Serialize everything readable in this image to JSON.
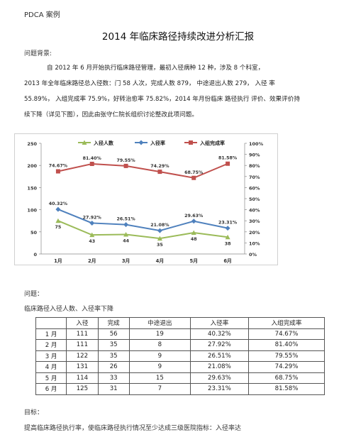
{
  "header": {
    "label": "PDCA 案例"
  },
  "title": "2014 年临床路径持续改进分析汇报",
  "background": {
    "heading": "问题背景:",
    "lines": [
      "自 2012 年 6 月开始执行临床路径管理，最初入径病种 12 种，涉及 8 个科室，",
      "2013 年全年临床路径总入径数：门 58 人次，完成人数 879， 中途退出人数 279， 入径  率",
      "55.89%，  入组完成率 75.9%，好转治愈率 75.82%，2014 年月份临床  路径执行  评价、效果评价持",
      "续下降（详见下图），因此由张守仁院长组织讨论整改此项问题。"
    ]
  },
  "chart_data": {
    "type": "line",
    "categories": [
      "1月",
      "2月",
      "3月",
      "4月",
      "5月",
      "6月"
    ],
    "left_axis": {
      "ticks": [
        "0",
        "50",
        "100",
        "150",
        "200",
        "250"
      ],
      "ylim": [
        0,
        250
      ]
    },
    "right_axis": {
      "ticks": [
        "0%",
        "10%",
        "20%",
        "30%",
        "40%",
        "50%",
        "60%",
        "70%",
        "80%",
        "90%",
        "100%"
      ],
      "ylim": [
        0,
        100
      ]
    },
    "legend_position": "top",
    "series": [
      {
        "name": "入径人数",
        "axis": "left",
        "color": "#9bbb59",
        "values": [
          75,
          43,
          44,
          35,
          48,
          38
        ],
        "labels": [
          "75",
          "43",
          "44",
          "35",
          "48",
          "38"
        ]
      },
      {
        "name": "入径率",
        "axis": "right",
        "color": "#4f81bd",
        "values": [
          40.32,
          27.92,
          26.51,
          21.08,
          29.63,
          23.31
        ],
        "labels": [
          "40.32%",
          "27.92%",
          "26.51%",
          "21.08%",
          "29.63%",
          "23.31%"
        ]
      },
      {
        "name": "入组完成率",
        "axis": "right",
        "color": "#c0504d",
        "values": [
          74.67,
          81.4,
          79.55,
          74.29,
          68.75,
          81.58
        ],
        "labels": [
          "74.67%",
          "81.40%",
          "79.55%",
          "74.29%",
          "68.75%",
          "81.58%"
        ]
      }
    ]
  },
  "problem": {
    "heading": "问题：",
    "table_caption": "临床路径入径人数、入径率下降"
  },
  "table": {
    "headers": [
      "",
      "入径",
      "完成",
      "中途退出",
      "入径率",
      "入组完成率"
    ],
    "rows": [
      [
        "1 月",
        "111",
        "56",
        "19",
        "40.32%",
        "74.67%"
      ],
      [
        "2 月",
        "111",
        "35",
        "8",
        "27.92%",
        "81.40%"
      ],
      [
        "3 月",
        "122",
        "35",
        "9",
        "26.51%",
        "79.55%"
      ],
      [
        "4 月",
        "131",
        "26",
        "9",
        "21.08%",
        "74.29%"
      ],
      [
        "5 月",
        "114",
        "33",
        "15",
        "29.63%",
        "68.75%"
      ],
      [
        "6 月",
        "125",
        "31",
        "7",
        "23.31%",
        "81.58%"
      ]
    ]
  },
  "goal": {
    "heading": "目标：",
    "line": "提高临床路径执行率，使临床路径执行情况至少达成三级医院指标：入径率达"
  }
}
